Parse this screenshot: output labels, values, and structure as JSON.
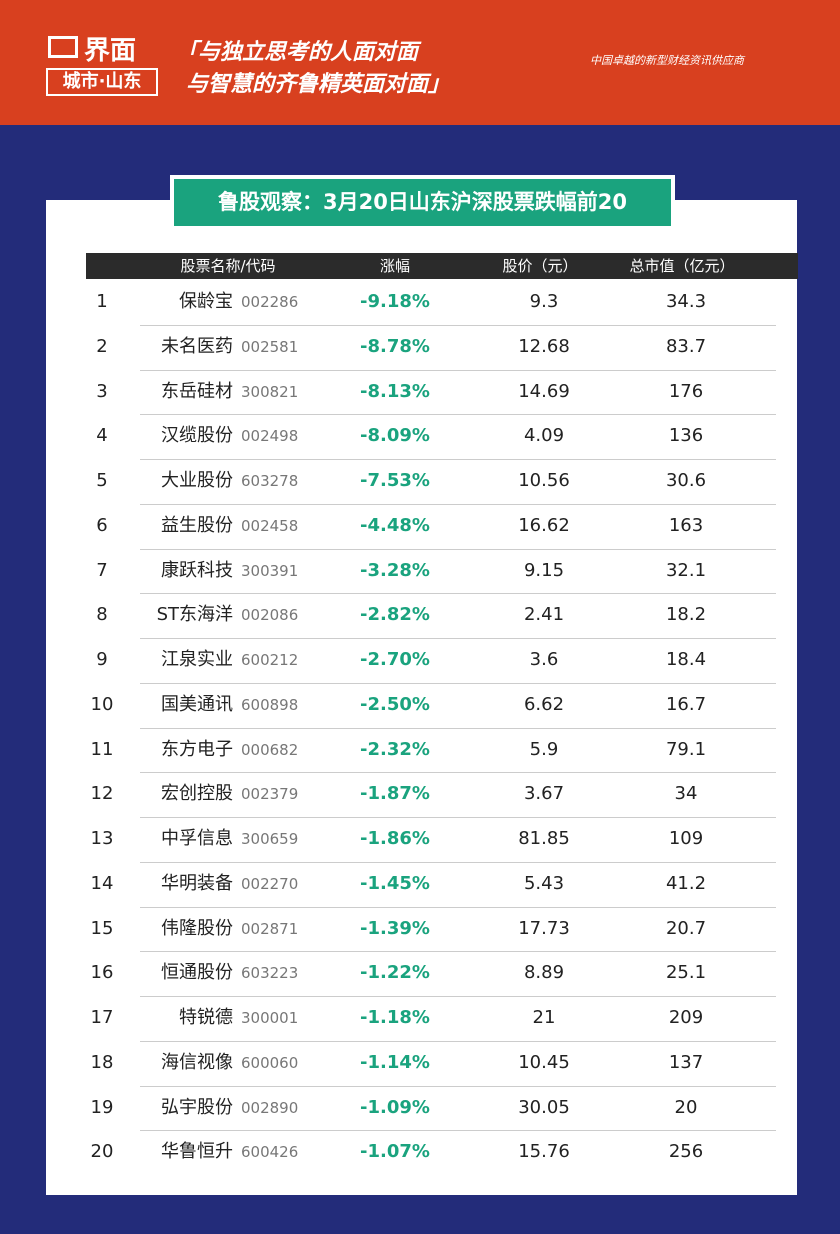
{
  "header": {
    "logo": "界面",
    "logo_sub": "城市·山东",
    "slogan": [
      "「与独立思考的人面对面",
      "与智慧的齐鲁精英面对面」"
    ],
    "tagline": "中国卓越的新型财经资讯供应商"
  },
  "table": {
    "title": "鲁股观察：3月20日山东沪深股票跌幅前20",
    "columns": [
      "股票名称/代码",
      "涨幅",
      "股价（元）",
      "总市值（亿元）"
    ],
    "rows": [
      [
        "1",
        "保龄宝",
        "002286",
        "-9.18%",
        "9.3",
        "34.3"
      ],
      [
        "2",
        "未名医药",
        "002581",
        "-8.78%",
        "12.68",
        "83.7"
      ],
      [
        "3",
        "东岳硅材",
        "300821",
        "-8.13%",
        "14.69",
        "176"
      ],
      [
        "4",
        "汉缆股份",
        "002498",
        "-8.09%",
        "4.09",
        "136"
      ],
      [
        "5",
        "大业股份",
        "603278",
        "-7.53%",
        "10.56",
        "30.6"
      ],
      [
        "6",
        "益生股份",
        "002458",
        "-4.48%",
        "16.62",
        "163"
      ],
      [
        "7",
        "康跃科技",
        "300391",
        "-3.28%",
        "9.15",
        "32.1"
      ],
      [
        "8",
        "ST东海洋",
        "002086",
        "-2.82%",
        "2.41",
        "18.2"
      ],
      [
        "9",
        "江泉实业",
        "600212",
        "-2.70%",
        "3.6",
        "18.4"
      ],
      [
        "10",
        "国美通讯",
        "600898",
        "-2.50%",
        "6.62",
        "16.7"
      ],
      [
        "11",
        "东方电子",
        "000682",
        "-2.32%",
        "5.9",
        "79.1"
      ],
      [
        "12",
        "宏创控股",
        "002379",
        "-1.87%",
        "3.67",
        "34"
      ],
      [
        "13",
        "中孚信息",
        "300659",
        "-1.86%",
        "81.85",
        "109"
      ],
      [
        "14",
        "华明装备",
        "002270",
        "-1.45%",
        "5.43",
        "41.2"
      ],
      [
        "15",
        "伟隆股份",
        "002871",
        "-1.39%",
        "17.73",
        "20.7"
      ],
      [
        "16",
        "恒通股份",
        "603223",
        "-1.22%",
        "8.89",
        "25.1"
      ],
      [
        "17",
        "特锐德",
        "300001",
        "-1.18%",
        "21",
        "209"
      ],
      [
        "18",
        "海信视像",
        "600060",
        "-1.14%",
        "10.45",
        "137"
      ],
      [
        "19",
        "弘宇股份",
        "002890",
        "-1.09%",
        "30.05",
        "20"
      ],
      [
        "20",
        "华鲁恒升",
        "600426",
        "-1.07%",
        "15.76",
        "256"
      ]
    ]
  }
}
